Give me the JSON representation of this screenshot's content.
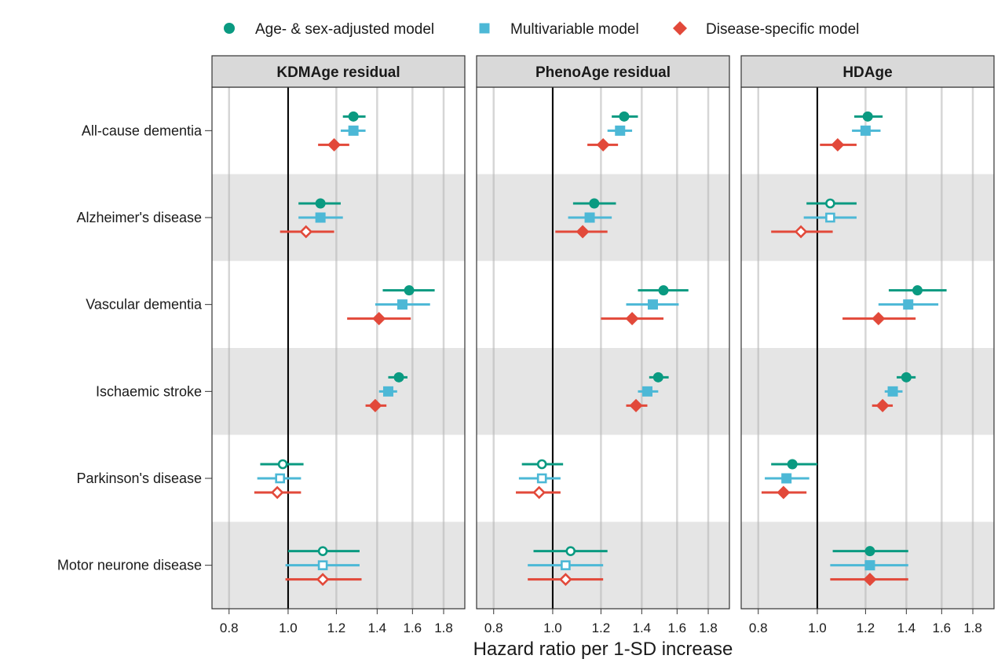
{
  "chart_data": {
    "type": "forest",
    "xlabel": "Hazard ratio per 1-SD increase",
    "x_scale": "log",
    "xlim": [
      0.75,
      1.95
    ],
    "x_ticks": [
      0.8,
      1.0,
      1.2,
      1.4,
      1.6,
      1.8
    ],
    "x_tick_labels": [
      "0.8",
      "1.0",
      "1.2",
      "1.4",
      "1.6",
      "1.8"
    ],
    "reference_line": 1.0,
    "legend_position": "top",
    "categories": [
      "All-cause dementia",
      "Alzheimer's disease",
      "Vascular dementia",
      "Ischaemic stroke",
      "Parkinson's disease",
      "Motor neurone disease"
    ],
    "series": [
      {
        "name": "Age- & sex-adjusted model",
        "color": "#0a9a81",
        "marker": "circle"
      },
      {
        "name": "Multivariable model",
        "color": "#4cb8d6",
        "marker": "square"
      },
      {
        "name": "Disease-specific model",
        "color": "#e2493a",
        "marker": "diamond"
      }
    ],
    "panels": [
      {
        "title": "KDMAge residual",
        "rows": [
          [
            {
              "hr": 1.28,
              "lo": 1.23,
              "hi": 1.34,
              "sig": true
            },
            {
              "hr": 1.28,
              "lo": 1.22,
              "hi": 1.34,
              "sig": true
            },
            {
              "hr": 1.19,
              "lo": 1.12,
              "hi": 1.26,
              "sig": true
            }
          ],
          [
            {
              "hr": 1.13,
              "lo": 1.04,
              "hi": 1.22,
              "sig": true
            },
            {
              "hr": 1.13,
              "lo": 1.04,
              "hi": 1.23,
              "sig": true
            },
            {
              "hr": 1.07,
              "lo": 0.97,
              "hi": 1.19,
              "sig": false
            }
          ],
          [
            {
              "hr": 1.58,
              "lo": 1.43,
              "hi": 1.74,
              "sig": true
            },
            {
              "hr": 1.54,
              "lo": 1.39,
              "hi": 1.71,
              "sig": true
            },
            {
              "hr": 1.41,
              "lo": 1.25,
              "hi": 1.59,
              "sig": true
            }
          ],
          [
            {
              "hr": 1.52,
              "lo": 1.46,
              "hi": 1.57,
              "sig": true
            },
            {
              "hr": 1.46,
              "lo": 1.41,
              "hi": 1.51,
              "sig": true
            },
            {
              "hr": 1.39,
              "lo": 1.34,
              "hi": 1.45,
              "sig": true
            }
          ],
          [
            {
              "hr": 0.98,
              "lo": 0.9,
              "hi": 1.06,
              "sig": false
            },
            {
              "hr": 0.97,
              "lo": 0.89,
              "hi": 1.05,
              "sig": false
            },
            {
              "hr": 0.96,
              "lo": 0.88,
              "hi": 1.05,
              "sig": false
            }
          ],
          [
            {
              "hr": 1.14,
              "lo": 1.0,
              "hi": 1.31,
              "sig": false
            },
            {
              "hr": 1.14,
              "lo": 0.99,
              "hi": 1.31,
              "sig": false
            },
            {
              "hr": 1.14,
              "lo": 0.99,
              "hi": 1.32,
              "sig": false
            }
          ]
        ]
      },
      {
        "title": "PhenoAge residual",
        "rows": [
          [
            {
              "hr": 1.31,
              "lo": 1.25,
              "hi": 1.38,
              "sig": true
            },
            {
              "hr": 1.29,
              "lo": 1.23,
              "hi": 1.35,
              "sig": true
            },
            {
              "hr": 1.21,
              "lo": 1.14,
              "hi": 1.28,
              "sig": true
            }
          ],
          [
            {
              "hr": 1.17,
              "lo": 1.08,
              "hi": 1.27,
              "sig": true
            },
            {
              "hr": 1.15,
              "lo": 1.06,
              "hi": 1.25,
              "sig": true
            },
            {
              "hr": 1.12,
              "lo": 1.01,
              "hi": 1.23,
              "sig": true
            }
          ],
          [
            {
              "hr": 1.52,
              "lo": 1.38,
              "hi": 1.67,
              "sig": true
            },
            {
              "hr": 1.46,
              "lo": 1.32,
              "hi": 1.61,
              "sig": true
            },
            {
              "hr": 1.35,
              "lo": 1.2,
              "hi": 1.52,
              "sig": true
            }
          ],
          [
            {
              "hr": 1.49,
              "lo": 1.44,
              "hi": 1.55,
              "sig": true
            },
            {
              "hr": 1.43,
              "lo": 1.38,
              "hi": 1.49,
              "sig": true
            },
            {
              "hr": 1.37,
              "lo": 1.32,
              "hi": 1.43,
              "sig": true
            }
          ],
          [
            {
              "hr": 0.96,
              "lo": 0.89,
              "hi": 1.04,
              "sig": false
            },
            {
              "hr": 0.96,
              "lo": 0.88,
              "hi": 1.03,
              "sig": false
            },
            {
              "hr": 0.95,
              "lo": 0.87,
              "hi": 1.03,
              "sig": false
            }
          ],
          [
            {
              "hr": 1.07,
              "lo": 0.93,
              "hi": 1.23,
              "sig": false
            },
            {
              "hr": 1.05,
              "lo": 0.91,
              "hi": 1.21,
              "sig": false
            },
            {
              "hr": 1.05,
              "lo": 0.91,
              "hi": 1.21,
              "sig": false
            }
          ]
        ]
      },
      {
        "title": "HDAge",
        "rows": [
          [
            {
              "hr": 1.21,
              "lo": 1.15,
              "hi": 1.28,
              "sig": true
            },
            {
              "hr": 1.2,
              "lo": 1.14,
              "hi": 1.27,
              "sig": true
            },
            {
              "hr": 1.08,
              "lo": 1.01,
              "hi": 1.16,
              "sig": true
            }
          ],
          [
            {
              "hr": 1.05,
              "lo": 0.96,
              "hi": 1.16,
              "sig": false
            },
            {
              "hr": 1.05,
              "lo": 0.95,
              "hi": 1.16,
              "sig": false
            },
            {
              "hr": 0.94,
              "lo": 0.84,
              "hi": 1.06,
              "sig": false
            }
          ],
          [
            {
              "hr": 1.46,
              "lo": 1.31,
              "hi": 1.63,
              "sig": true
            },
            {
              "hr": 1.41,
              "lo": 1.26,
              "hi": 1.58,
              "sig": true
            },
            {
              "hr": 1.26,
              "lo": 1.1,
              "hi": 1.45,
              "sig": true
            }
          ],
          [
            {
              "hr": 1.4,
              "lo": 1.35,
              "hi": 1.45,
              "sig": true
            },
            {
              "hr": 1.33,
              "lo": 1.29,
              "hi": 1.38,
              "sig": true
            },
            {
              "hr": 1.28,
              "lo": 1.23,
              "hi": 1.33,
              "sig": true
            }
          ],
          [
            {
              "hr": 0.91,
              "lo": 0.84,
              "hi": 1.0,
              "sig": true
            },
            {
              "hr": 0.89,
              "lo": 0.82,
              "hi": 0.97,
              "sig": true
            },
            {
              "hr": 0.88,
              "lo": 0.81,
              "hi": 0.96,
              "sig": true
            }
          ],
          [
            {
              "hr": 1.22,
              "lo": 1.06,
              "hi": 1.41,
              "sig": true
            },
            {
              "hr": 1.22,
              "lo": 1.05,
              "hi": 1.41,
              "sig": true
            },
            {
              "hr": 1.22,
              "lo": 1.05,
              "hi": 1.41,
              "sig": true
            }
          ]
        ]
      }
    ]
  }
}
